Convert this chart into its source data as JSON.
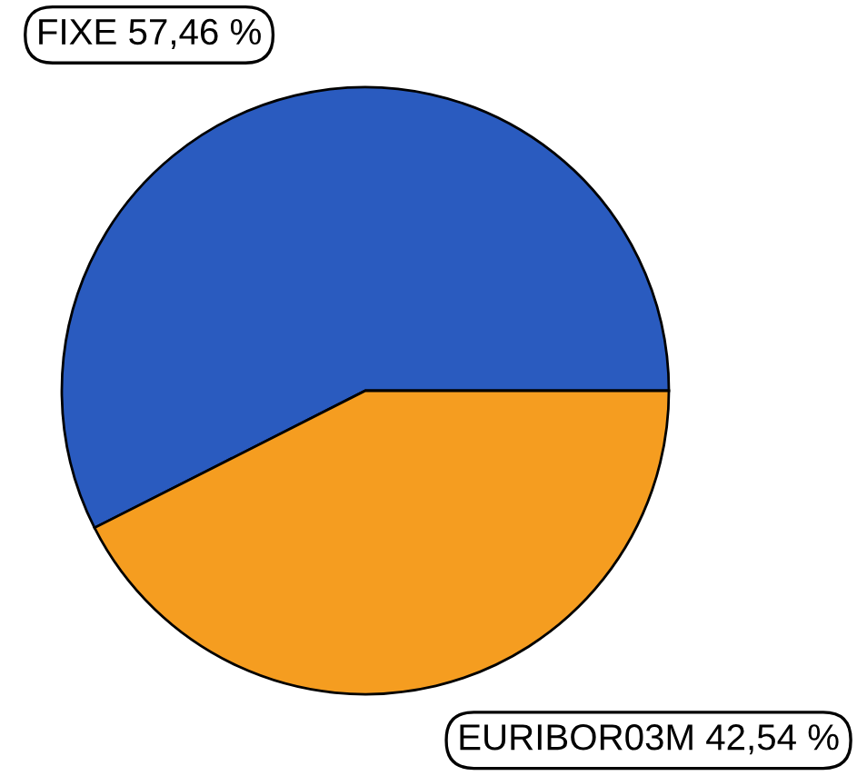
{
  "chart_data": {
    "type": "pie",
    "categories": [
      "FIXE",
      "EURIBOR03M"
    ],
    "values": [
      57.46,
      42.54
    ],
    "colors": [
      "#2a5bbf",
      "#f59d20"
    ],
    "value_labels": [
      "57,46 %",
      "42,54 %"
    ]
  }
}
